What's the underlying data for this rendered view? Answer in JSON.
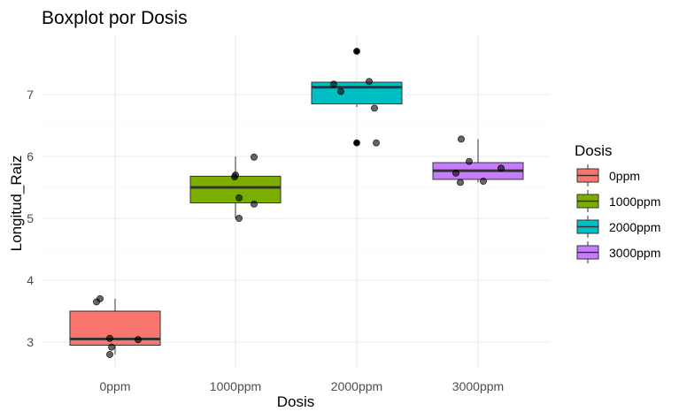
{
  "chart_data": {
    "type": "boxplot",
    "title": "Boxplot por Dosis",
    "xlabel": "Dosis",
    "ylabel": "Longitud_Raiz",
    "categories": [
      "0ppm",
      "1000ppm",
      "2000ppm",
      "3000ppm"
    ],
    "yticks": [
      3,
      4,
      5,
      6,
      7
    ],
    "ylim": [
      2.7,
      7.95
    ],
    "grid": true,
    "legend": {
      "title": "Dosis",
      "position": "right",
      "entries": [
        "0ppm",
        "1000ppm",
        "2000ppm",
        "3000ppm"
      ]
    },
    "colors": [
      "#F8766D",
      "#7CAE00",
      "#00BFC4",
      "#C77CFF"
    ],
    "boxes": [
      {
        "category": "0ppm",
        "whisker_low": 2.8,
        "q1": 2.95,
        "median": 3.05,
        "q3": 3.5,
        "whisker_high": 3.7
      },
      {
        "category": "1000ppm",
        "whisker_low": 5.0,
        "q1": 5.25,
        "median": 5.5,
        "q3": 5.68,
        "whisker_high": 6.0
      },
      {
        "category": "2000ppm",
        "whisker_low": 6.8,
        "q1": 6.85,
        "median": 7.12,
        "q3": 7.2,
        "whisker_high": 7.2,
        "outliers": [
          7.7,
          6.22,
          6.22
        ]
      },
      {
        "category": "3000ppm",
        "whisker_low": 5.58,
        "q1": 5.63,
        "median": 5.77,
        "q3": 5.9,
        "whisker_high": 6.28
      }
    ],
    "points": [
      {
        "category": "0ppm",
        "values": [
          3.65,
          3.7,
          3.06,
          3.04,
          2.92,
          2.8
        ]
      },
      {
        "category": "1000ppm",
        "values": [
          5.7,
          5.67,
          5.99,
          5.33,
          5.23,
          5.0
        ]
      },
      {
        "category": "2000ppm",
        "values": [
          7.7,
          7.17,
          7.05,
          7.21,
          6.78,
          6.22,
          6.22
        ]
      },
      {
        "category": "3000ppm",
        "values": [
          6.28,
          5.92,
          5.73,
          5.81,
          5.58,
          5.6
        ]
      }
    ]
  }
}
